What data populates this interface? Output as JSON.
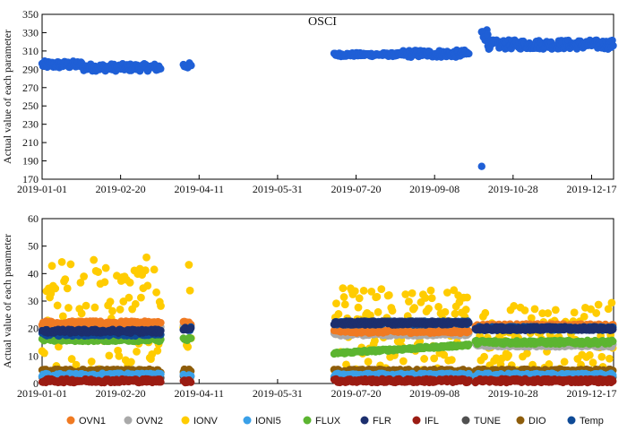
{
  "chart_data": [
    {
      "type": "scatter",
      "title": "OSCI",
      "ylabel": "Actual value of each parameter",
      "xlabel": "",
      "xlim": [
        0,
        364
      ],
      "ylim": [
        170,
        350
      ],
      "yticks": [
        170,
        190,
        210,
        230,
        250,
        270,
        290,
        310,
        330,
        350
      ],
      "xticks": [
        {
          "day": 0,
          "label": "2019-01-01"
        },
        {
          "day": 50,
          "label": "2019-02-20"
        },
        {
          "day": 100,
          "label": "2019-04-11"
        },
        {
          "day": 150,
          "label": "2019-05-31"
        },
        {
          "day": 200,
          "label": "2019-07-20"
        },
        {
          "day": 250,
          "label": "2019-09-08"
        },
        {
          "day": 300,
          "label": "2019-10-28"
        },
        {
          "day": 350,
          "label": "2019-12-17"
        }
      ],
      "series": [
        {
          "name": "OSCI",
          "color": "#1f5fd6",
          "segments": [
            {
              "start": 0,
              "end": 26,
              "center": 295,
              "spread": 4
            },
            {
              "start": 26,
              "end": 76,
              "center": 292,
              "spread": 4
            },
            {
              "start": 90,
              "end": 95,
              "center": 294,
              "spread": 3
            },
            {
              "start": 186,
              "end": 230,
              "center": 306,
              "spread": 2
            },
            {
              "start": 230,
              "end": 272,
              "center": 307,
              "spread": 4
            },
            {
              "start": 280,
              "end": 284,
              "center": 328,
              "spread": 7
            },
            {
              "start": 284,
              "end": 364,
              "center": 317,
              "spread": 5
            }
          ],
          "outliers": [
            {
              "x": 280,
              "y": 184
            }
          ]
        }
      ]
    },
    {
      "type": "scatter",
      "title": "",
      "ylabel": "Actual value of each parameter",
      "xlabel": "",
      "xlim": [
        0,
        364
      ],
      "ylim": [
        0,
        60
      ],
      "yticks": [
        0,
        10,
        20,
        30,
        40,
        50,
        60
      ],
      "xticks": [
        {
          "day": 0,
          "label": "2019-01-01"
        },
        {
          "day": 50,
          "label": "2019-02-20"
        },
        {
          "day": 100,
          "label": "2019-04-11"
        },
        {
          "day": 150,
          "label": "2019-05-31"
        },
        {
          "day": 200,
          "label": "2019-07-20"
        },
        {
          "day": 250,
          "label": "2019-09-08"
        },
        {
          "day": 300,
          "label": "2019-10-28"
        },
        {
          "day": 350,
          "label": "2019-12-17"
        }
      ],
      "ranges": [
        [
          0,
          76
        ],
        [
          90,
          95
        ],
        [
          186,
          272
        ],
        [
          276,
          364
        ]
      ],
      "series": [
        {
          "name": "OVN1",
          "color": "#f07a22",
          "levels": [
            22,
            22,
            19,
            21
          ]
        },
        {
          "name": "OVN2",
          "color": "#a9a9a9",
          "levels": [
            21,
            21,
            18,
            14
          ]
        },
        {
          "name": "IONV",
          "color": "#ffcc00",
          "levels": [
            24,
            24,
            18,
            16
          ],
          "spread": [
            22,
            22,
            17,
            14
          ]
        },
        {
          "name": "IONI5",
          "color": "#3aa0e8",
          "levels": [
            3,
            3,
            3,
            3
          ]
        },
        {
          "name": "FLUX",
          "color": "#5cb531",
          "levels": [
            16,
            16,
            12,
            15
          ]
        },
        {
          "name": "FLR",
          "color": "#1c2f6e",
          "levels": [
            19,
            20,
            22,
            20
          ]
        },
        {
          "name": "IFL",
          "color": "#9b1c13",
          "levels": [
            1,
            1,
            1,
            1
          ]
        },
        {
          "name": "TUNE",
          "color": "#505050",
          "levels": [
            2,
            2,
            2,
            2
          ]
        },
        {
          "name": "DIO",
          "color": "#8e5d0b",
          "levels": [
            4.5,
            4.5,
            4.5,
            4.5
          ]
        },
        {
          "name": "Temp",
          "color": "#0e4a96",
          "levels": [
            18,
            20,
            22,
            20
          ]
        }
      ]
    }
  ]
}
